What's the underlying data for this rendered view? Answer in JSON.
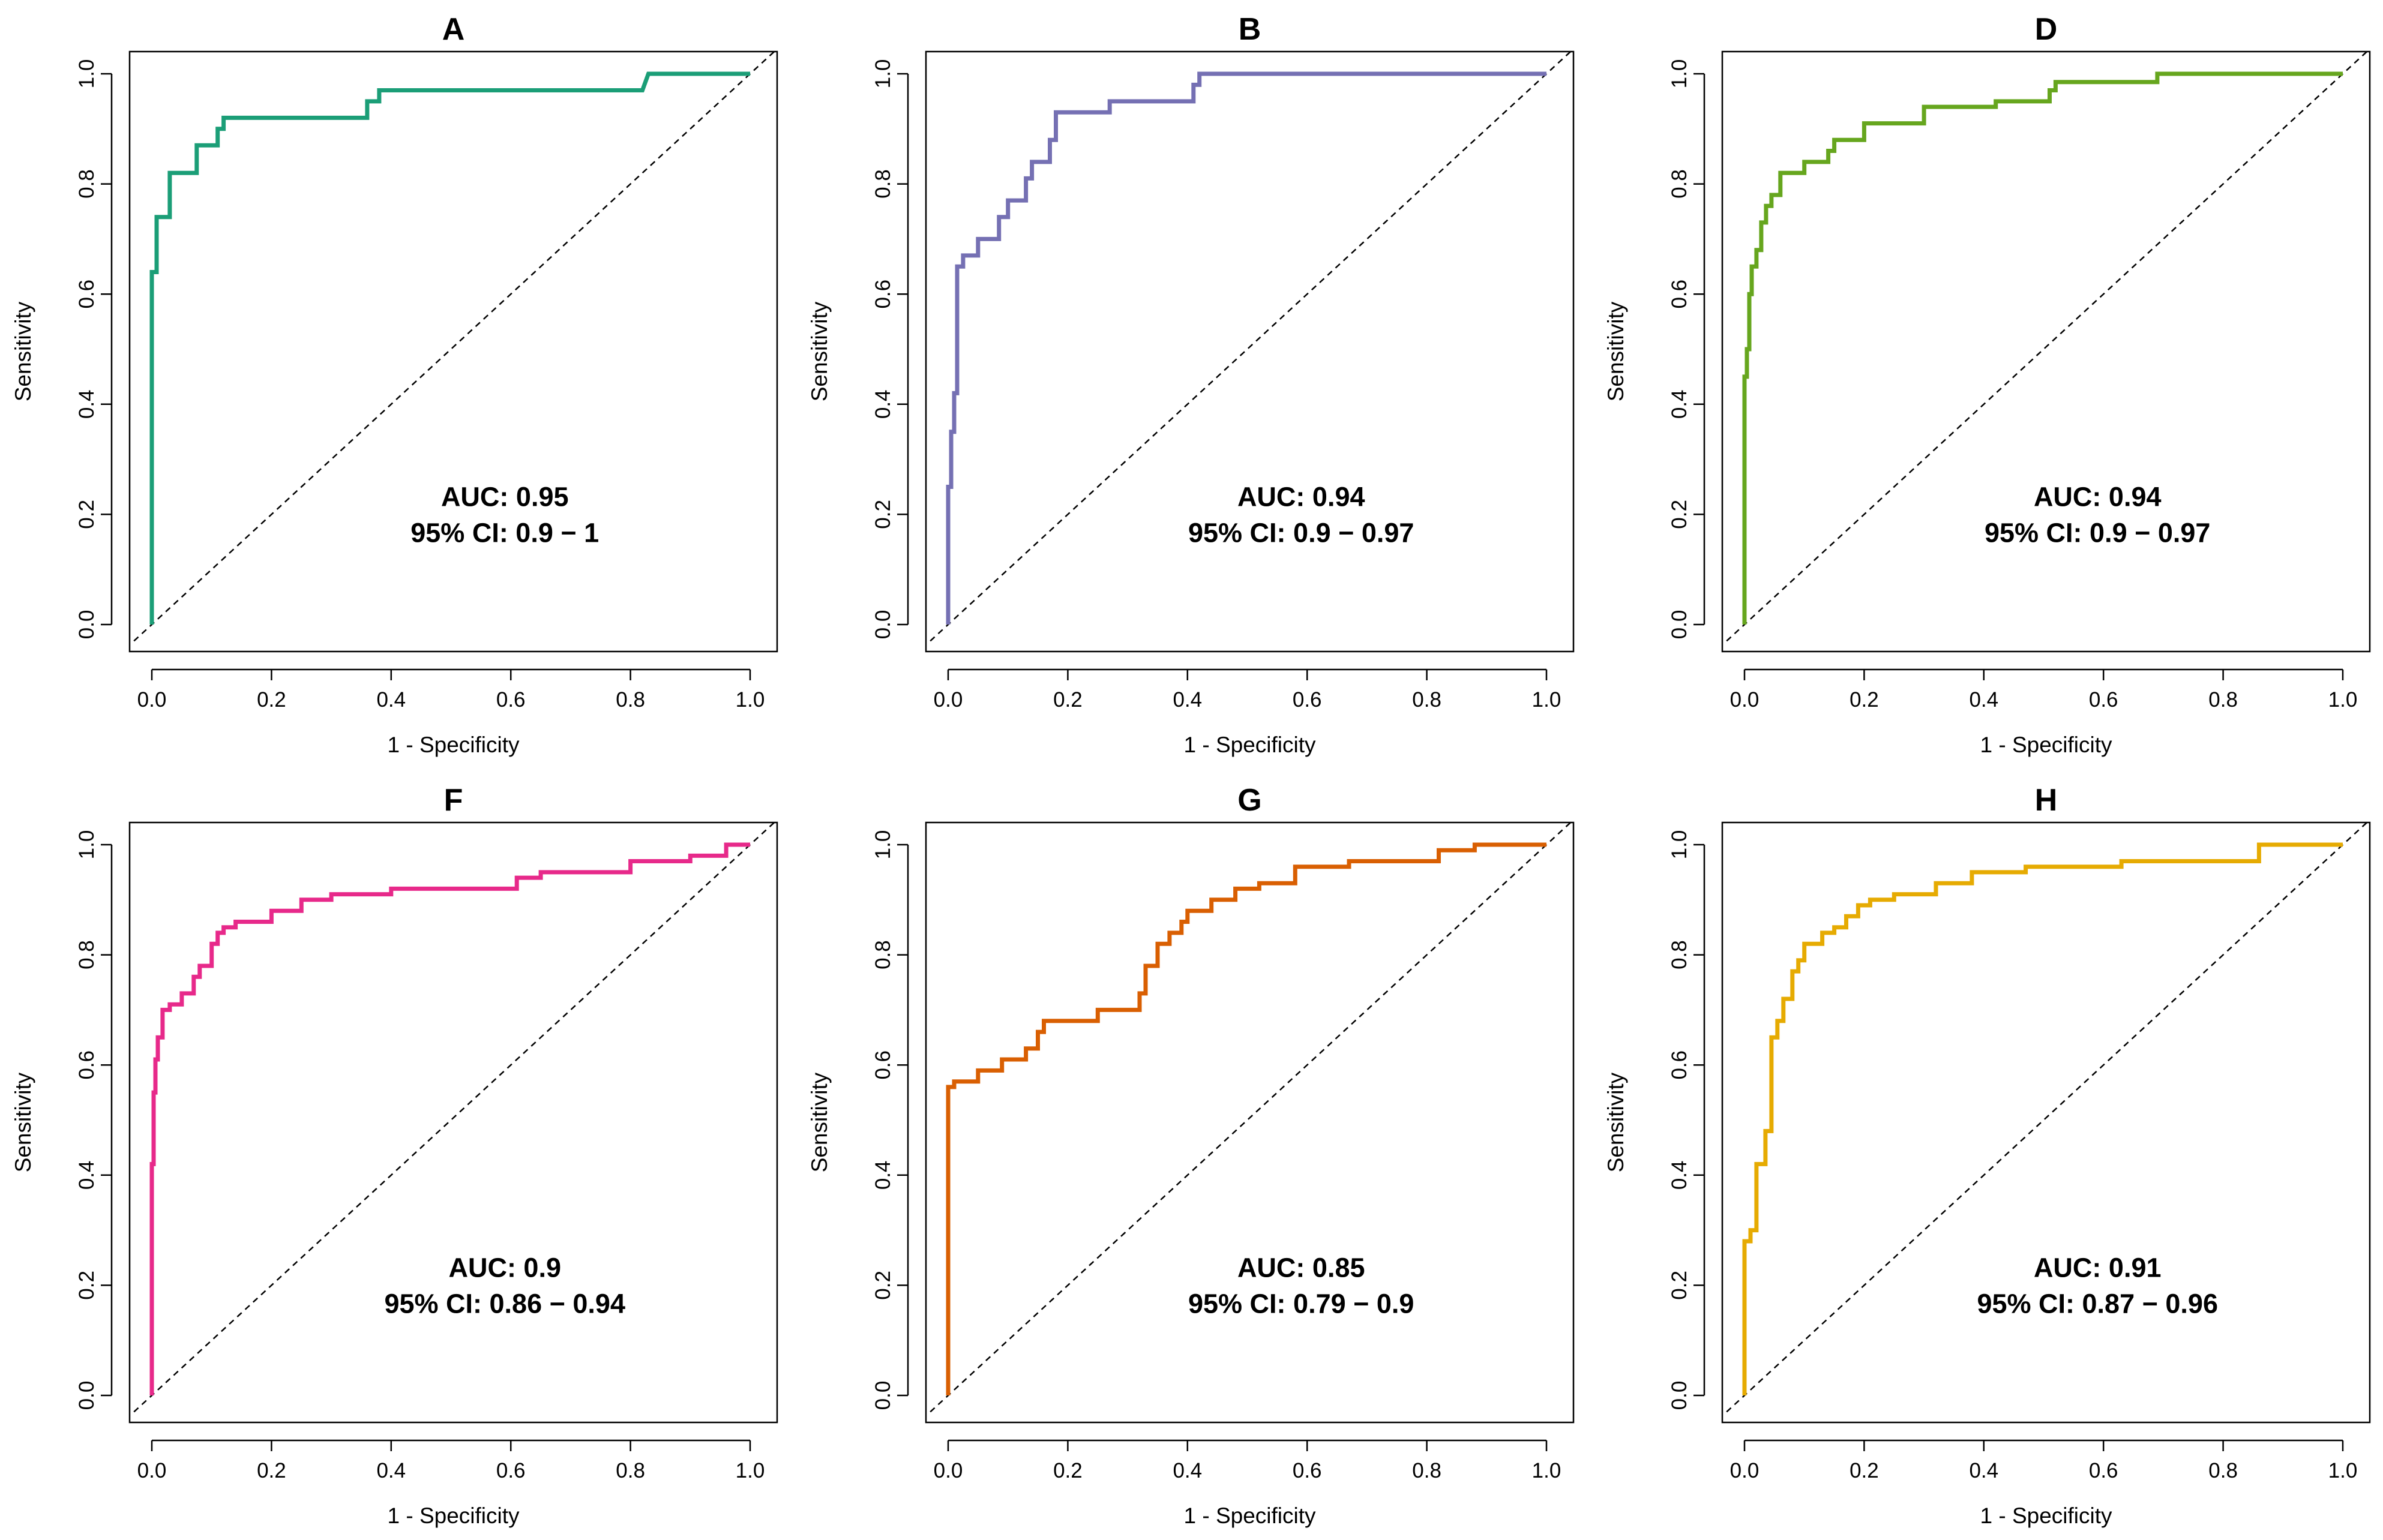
{
  "chart_data": [
    {
      "type": "line",
      "panel": "A",
      "title": "A",
      "xlabel": "1 - Specificity",
      "ylabel": "Sensitivity",
      "xlim": [
        0,
        1
      ],
      "ylim": [
        0,
        1
      ],
      "xticks": [
        "0.0",
        "0.2",
        "0.4",
        "0.6",
        "0.8",
        "1.0"
      ],
      "yticks": [
        "0.0",
        "0.2",
        "0.4",
        "0.6",
        "0.8",
        "1.0"
      ],
      "color": "#1b9e77",
      "auc_label": "AUC: 0.95",
      "ci_label": "95% CI: 0.9 − 1",
      "reference_line": "diagonal",
      "series": [
        {
          "name": "ROC",
          "x": [
            0,
            0,
            0.008,
            0.008,
            0.03,
            0.03,
            0.075,
            0.075,
            0.11,
            0.11,
            0.12,
            0.12,
            0.36,
            0.36,
            0.38,
            0.38,
            0.82,
            0.83,
            1.0
          ],
          "y": [
            0,
            0.64,
            0.64,
            0.74,
            0.74,
            0.82,
            0.82,
            0.87,
            0.87,
            0.9,
            0.9,
            0.92,
            0.92,
            0.95,
            0.95,
            0.97,
            0.97,
            1.0,
            1.0
          ]
        }
      ]
    },
    {
      "type": "line",
      "panel": "B",
      "title": "B",
      "xlabel": "1 - Specificity",
      "ylabel": "Sensitivity",
      "xlim": [
        0,
        1
      ],
      "ylim": [
        0,
        1
      ],
      "xticks": [
        "0.0",
        "0.2",
        "0.4",
        "0.6",
        "0.8",
        "1.0"
      ],
      "yticks": [
        "0.0",
        "0.2",
        "0.4",
        "0.6",
        "0.8",
        "1.0"
      ],
      "color": "#7570b3",
      "auc_label": "AUC: 0.94",
      "ci_label": "95% CI: 0.9 − 0.97",
      "reference_line": "diagonal",
      "series": [
        {
          "name": "ROC",
          "x": [
            0,
            0,
            0.005,
            0.005,
            0.01,
            0.01,
            0.015,
            0.015,
            0.025,
            0.025,
            0.05,
            0.05,
            0.085,
            0.085,
            0.1,
            0.1,
            0.13,
            0.13,
            0.14,
            0.14,
            0.17,
            0.17,
            0.18,
            0.18,
            0.27,
            0.27,
            0.41,
            0.41,
            0.42,
            0.42,
            1.0
          ],
          "y": [
            0,
            0.25,
            0.25,
            0.35,
            0.35,
            0.42,
            0.42,
            0.65,
            0.65,
            0.67,
            0.67,
            0.7,
            0.7,
            0.74,
            0.74,
            0.77,
            0.77,
            0.81,
            0.81,
            0.84,
            0.84,
            0.88,
            0.88,
            0.93,
            0.93,
            0.95,
            0.95,
            0.98,
            0.98,
            1.0,
            1.0
          ]
        }
      ]
    },
    {
      "type": "line",
      "panel": "D",
      "title": "D",
      "xlabel": "1 - Specificity",
      "ylabel": "Sensitivity",
      "xlim": [
        0,
        1
      ],
      "ylim": [
        0,
        1
      ],
      "xticks": [
        "0.0",
        "0.2",
        "0.4",
        "0.6",
        "0.8",
        "1.0"
      ],
      "yticks": [
        "0.0",
        "0.2",
        "0.4",
        "0.6",
        "0.8",
        "1.0"
      ],
      "color": "#66a61e",
      "auc_label": "AUC: 0.94",
      "ci_label": "95% CI: 0.9 − 0.97",
      "reference_line": "diagonal",
      "series": [
        {
          "name": "ROC",
          "x": [
            0,
            0,
            0.004,
            0.004,
            0.008,
            0.008,
            0.012,
            0.012,
            0.02,
            0.02,
            0.028,
            0.028,
            0.036,
            0.036,
            0.045,
            0.045,
            0.06,
            0.06,
            0.1,
            0.1,
            0.14,
            0.14,
            0.15,
            0.15,
            0.2,
            0.2,
            0.3,
            0.3,
            0.42,
            0.42,
            0.51,
            0.51,
            0.52,
            0.52,
            0.69,
            0.69,
            1.0
          ],
          "y": [
            0,
            0.45,
            0.45,
            0.5,
            0.5,
            0.6,
            0.6,
            0.65,
            0.65,
            0.68,
            0.68,
            0.73,
            0.73,
            0.76,
            0.76,
            0.78,
            0.78,
            0.82,
            0.82,
            0.84,
            0.84,
            0.86,
            0.86,
            0.88,
            0.88,
            0.91,
            0.91,
            0.94,
            0.94,
            0.95,
            0.95,
            0.97,
            0.97,
            0.985,
            0.985,
            1.0,
            1.0
          ]
        }
      ]
    },
    {
      "type": "line",
      "panel": "F",
      "title": "F",
      "xlabel": "1 - Specificity",
      "ylabel": "Sensitivity",
      "xlim": [
        0,
        1
      ],
      "ylim": [
        0,
        1
      ],
      "xticks": [
        "0.0",
        "0.2",
        "0.4",
        "0.6",
        "0.8",
        "1.0"
      ],
      "yticks": [
        "0.0",
        "0.2",
        "0.4",
        "0.6",
        "0.8",
        "1.0"
      ],
      "color": "#e7298a",
      "auc_label": "AUC: 0.9",
      "ci_label": "95% CI: 0.86 − 0.94",
      "reference_line": "diagonal",
      "series": [
        {
          "name": "ROC",
          "x": [
            0,
            0,
            0.003,
            0.003,
            0.006,
            0.006,
            0.01,
            0.01,
            0.018,
            0.018,
            0.03,
            0.03,
            0.05,
            0.05,
            0.07,
            0.07,
            0.08,
            0.08,
            0.1,
            0.1,
            0.11,
            0.11,
            0.12,
            0.12,
            0.14,
            0.14,
            0.2,
            0.2,
            0.25,
            0.25,
            0.3,
            0.3,
            0.4,
            0.4,
            0.61,
            0.61,
            0.65,
            0.65,
            0.8,
            0.8,
            0.9,
            0.9,
            0.96,
            0.96,
            1.0
          ],
          "y": [
            0,
            0.42,
            0.42,
            0.55,
            0.55,
            0.61,
            0.61,
            0.65,
            0.65,
            0.7,
            0.7,
            0.71,
            0.71,
            0.73,
            0.73,
            0.76,
            0.76,
            0.78,
            0.78,
            0.82,
            0.82,
            0.84,
            0.84,
            0.85,
            0.85,
            0.86,
            0.86,
            0.88,
            0.88,
            0.9,
            0.9,
            0.91,
            0.91,
            0.92,
            0.92,
            0.94,
            0.94,
            0.95,
            0.95,
            0.97,
            0.97,
            0.98,
            0.98,
            1.0,
            1.0
          ]
        }
      ]
    },
    {
      "type": "line",
      "panel": "G",
      "title": "G",
      "xlabel": "1 - Specificity",
      "ylabel": "Sensitivity",
      "xlim": [
        0,
        1
      ],
      "ylim": [
        0,
        1
      ],
      "xticks": [
        "0.0",
        "0.2",
        "0.4",
        "0.6",
        "0.8",
        "1.0"
      ],
      "yticks": [
        "0.0",
        "0.2",
        "0.4",
        "0.6",
        "0.8",
        "1.0"
      ],
      "color": "#d95f02",
      "auc_label": "AUC: 0.85",
      "ci_label": "95% CI: 0.79 − 0.9",
      "reference_line": "diagonal",
      "series": [
        {
          "name": "ROC",
          "x": [
            0,
            0,
            0.01,
            0.01,
            0.05,
            0.05,
            0.09,
            0.09,
            0.13,
            0.13,
            0.15,
            0.15,
            0.16,
            0.16,
            0.25,
            0.25,
            0.32,
            0.32,
            0.33,
            0.33,
            0.35,
            0.35,
            0.37,
            0.37,
            0.39,
            0.39,
            0.4,
            0.4,
            0.44,
            0.44,
            0.48,
            0.48,
            0.52,
            0.52,
            0.58,
            0.58,
            0.67,
            0.67,
            0.82,
            0.82,
            0.88,
            0.88,
            1.0
          ],
          "y": [
            0,
            0.56,
            0.56,
            0.57,
            0.57,
            0.59,
            0.59,
            0.61,
            0.61,
            0.63,
            0.63,
            0.66,
            0.66,
            0.68,
            0.68,
            0.7,
            0.7,
            0.73,
            0.73,
            0.78,
            0.78,
            0.82,
            0.82,
            0.84,
            0.84,
            0.86,
            0.86,
            0.88,
            0.88,
            0.9,
            0.9,
            0.92,
            0.92,
            0.93,
            0.93,
            0.96,
            0.96,
            0.97,
            0.97,
            0.99,
            0.99,
            1.0,
            1.0
          ]
        }
      ]
    },
    {
      "type": "line",
      "panel": "H",
      "title": "H",
      "xlabel": "1 - Specificity",
      "ylabel": "Sensitivity",
      "xlim": [
        0,
        1
      ],
      "ylim": [
        0,
        1
      ],
      "xticks": [
        "0.0",
        "0.2",
        "0.4",
        "0.6",
        "0.8",
        "1.0"
      ],
      "yticks": [
        "0.0",
        "0.2",
        "0.4",
        "0.6",
        "0.8",
        "1.0"
      ],
      "color": "#e6ab02",
      "auc_label": "AUC: 0.91",
      "ci_label": "95% CI: 0.87 − 0.96",
      "reference_line": "diagonal",
      "series": [
        {
          "name": "ROC",
          "x": [
            0,
            0,
            0.01,
            0.01,
            0.02,
            0.02,
            0.035,
            0.035,
            0.045,
            0.045,
            0.055,
            0.055,
            0.065,
            0.065,
            0.08,
            0.08,
            0.09,
            0.09,
            0.1,
            0.1,
            0.13,
            0.13,
            0.15,
            0.15,
            0.17,
            0.17,
            0.19,
            0.19,
            0.21,
            0.21,
            0.25,
            0.25,
            0.32,
            0.32,
            0.38,
            0.38,
            0.47,
            0.47,
            0.63,
            0.63,
            0.86,
            0.86,
            1.0
          ],
          "y": [
            0,
            0.28,
            0.28,
            0.3,
            0.3,
            0.42,
            0.42,
            0.48,
            0.48,
            0.65,
            0.65,
            0.68,
            0.68,
            0.72,
            0.72,
            0.77,
            0.77,
            0.79,
            0.79,
            0.82,
            0.82,
            0.84,
            0.84,
            0.85,
            0.85,
            0.87,
            0.87,
            0.89,
            0.89,
            0.9,
            0.9,
            0.91,
            0.91,
            0.93,
            0.93,
            0.95,
            0.95,
            0.96,
            0.96,
            0.97,
            0.97,
            1.0,
            1.0
          ]
        }
      ]
    }
  ]
}
